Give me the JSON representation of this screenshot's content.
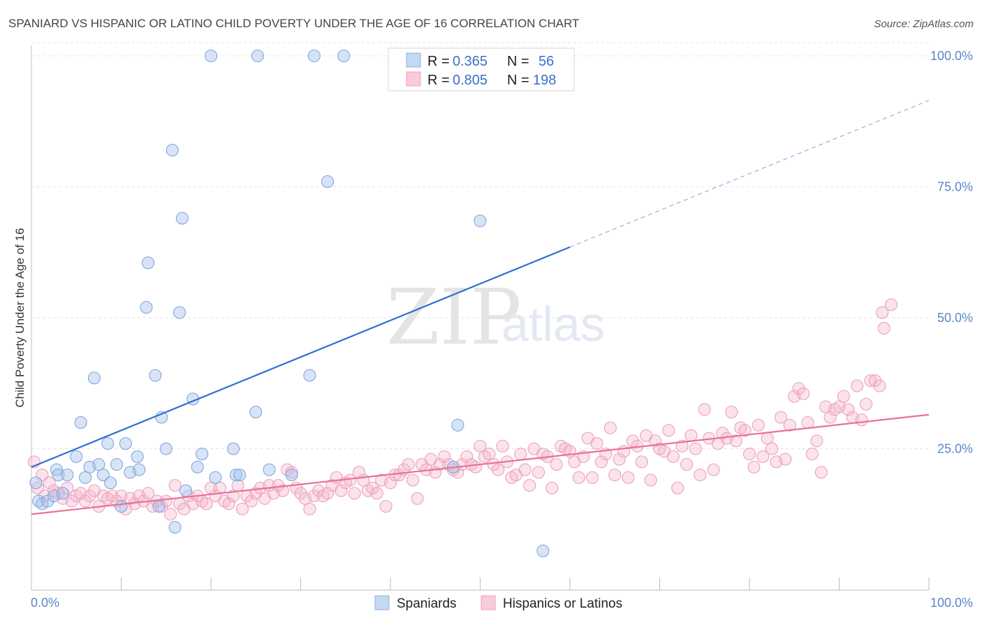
{
  "header": {
    "title": "SPANIARD VS HISPANIC OR LATINO CHILD POVERTY UNDER THE AGE OF 16 CORRELATION CHART",
    "source": "Source: ZipAtlas.com"
  },
  "watermark": {
    "zip": "ZIP",
    "atlas": "atlas"
  },
  "legend": {
    "rows": [
      {
        "r_label": "R =",
        "r_value": "0.365",
        "n_label": "N =",
        "n_value": "56",
        "color": "#a8c4ea"
      },
      {
        "r_label": "R =",
        "r_value": "0.805",
        "n_label": "N =",
        "n_value": "198",
        "color": "#f4b6cb"
      }
    ]
  },
  "bottom_legend": [
    {
      "label": "Spaniards",
      "color": "#a8c4ea"
    },
    {
      "label": "Hispanics or Latinos",
      "color": "#f4b6cb"
    }
  ],
  "chart_data": {
    "type": "scatter",
    "title": "SPANIARD VS HISPANIC OR LATINO CHILD POVERTY UNDER THE AGE OF 16 CORRELATION CHART",
    "xlabel": "",
    "ylabel": "Child Poverty Under the Age of 16",
    "xlim": [
      0,
      100
    ],
    "ylim": [
      0,
      102
    ],
    "x_tick_labels": [
      "0.0%",
      "100.0%"
    ],
    "y_tick_labels": [
      "25.0%",
      "50.0%",
      "75.0%",
      "100.0%"
    ],
    "y_ticks": [
      25,
      50,
      75,
      100
    ],
    "grid": true,
    "colors": {
      "spaniards": "#a8c4ea",
      "spaniards_line": "#2f6fd0",
      "hispanics": "#f4b6cb",
      "hispanics_line": "#e8709a"
    },
    "series": [
      {
        "name": "Spaniards",
        "trend": {
          "x0": 0,
          "y0": 21.5,
          "x1": 60,
          "y1": 63.5,
          "dashed_to_x": 100,
          "dashed_to_y": 91.5
        },
        "points": [
          [
            0.5,
            18.5
          ],
          [
            0.8,
            15
          ],
          [
            1.2,
            14.5
          ],
          [
            1.8,
            15
          ],
          [
            2.5,
            16
          ],
          [
            2.8,
            21
          ],
          [
            3,
            20
          ],
          [
            3.5,
            16.5
          ],
          [
            4,
            20
          ],
          [
            5,
            23.5
          ],
          [
            5.5,
            30
          ],
          [
            6,
            19.5
          ],
          [
            6.5,
            21.5
          ],
          [
            7,
            38.5
          ],
          [
            7.5,
            22
          ],
          [
            8,
            20
          ],
          [
            8.5,
            26
          ],
          [
            8.8,
            18.5
          ],
          [
            9.5,
            22
          ],
          [
            10,
            14
          ],
          [
            10.5,
            26
          ],
          [
            11,
            20.5
          ],
          [
            11.8,
            23.5
          ],
          [
            12,
            21
          ],
          [
            12.8,
            52
          ],
          [
            13,
            60.5
          ],
          [
            13.8,
            39
          ],
          [
            14.5,
            31
          ],
          [
            14.2,
            14
          ],
          [
            15,
            25
          ],
          [
            15.7,
            82
          ],
          [
            16,
            10
          ],
          [
            16.5,
            51
          ],
          [
            16.8,
            69
          ],
          [
            17.2,
            17
          ],
          [
            18,
            34.5
          ],
          [
            18.5,
            21.5
          ],
          [
            19,
            24
          ],
          [
            20,
            100
          ],
          [
            20.5,
            19.5
          ],
          [
            22.5,
            25
          ],
          [
            22.8,
            20
          ],
          [
            23.2,
            20
          ],
          [
            25,
            32
          ],
          [
            25.2,
            100
          ],
          [
            26.5,
            21
          ],
          [
            29,
            20
          ],
          [
            31,
            39
          ],
          [
            31.5,
            100
          ],
          [
            33,
            76
          ],
          [
            34.8,
            100
          ],
          [
            47,
            21.5
          ],
          [
            47.5,
            29.5
          ],
          [
            50,
            68.5
          ],
          [
            57,
            5.5
          ]
        ]
      },
      {
        "name": "Hispanics or Latinos",
        "trend": {
          "x0": 0,
          "y0": 12.5,
          "x1": 100,
          "y1": 31.5
        },
        "points": [
          [
            0.3,
            22.5
          ],
          [
            0.7,
            17.5
          ],
          [
            1.2,
            20
          ],
          [
            1.5,
            16
          ],
          [
            2,
            18.5
          ],
          [
            2.5,
            17
          ],
          [
            3,
            16.5
          ],
          [
            3.5,
            15.5
          ],
          [
            4,
            17.5
          ],
          [
            4.5,
            15
          ],
          [
            5,
            16
          ],
          [
            5.5,
            16.5
          ],
          [
            6,
            15
          ],
          [
            6.5,
            16
          ],
          [
            7,
            17
          ],
          [
            7.5,
            14
          ],
          [
            8,
            16
          ],
          [
            8.5,
            15.5
          ],
          [
            9,
            16
          ],
          [
            9.5,
            15
          ],
          [
            10,
            16
          ],
          [
            10.5,
            13.5
          ],
          [
            11,
            15.5
          ],
          [
            11.5,
            14.5
          ],
          [
            12,
            16
          ],
          [
            12.5,
            15
          ],
          [
            13,
            16.5
          ],
          [
            13.5,
            14
          ],
          [
            14,
            15
          ],
          [
            14.5,
            14
          ],
          [
            15,
            15
          ],
          [
            15.5,
            12.5
          ],
          [
            16,
            18
          ],
          [
            16.5,
            14.5
          ],
          [
            17,
            13.5
          ],
          [
            17.5,
            16
          ],
          [
            18,
            14.5
          ],
          [
            18.5,
            16
          ],
          [
            19,
            15
          ],
          [
            19.5,
            14.5
          ],
          [
            20,
            17.5
          ],
          [
            20.5,
            16
          ],
          [
            21,
            17.5
          ],
          [
            21.5,
            15
          ],
          [
            22,
            14.5
          ],
          [
            22.5,
            16
          ],
          [
            23,
            18
          ],
          [
            23.5,
            13.5
          ],
          [
            24,
            16
          ],
          [
            24.5,
            15
          ],
          [
            25,
            16.5
          ],
          [
            25.5,
            17.5
          ],
          [
            26,
            15.5
          ],
          [
            26.5,
            18
          ],
          [
            27,
            16.5
          ],
          [
            27.5,
            18
          ],
          [
            28,
            17
          ],
          [
            28.5,
            21
          ],
          [
            29,
            20.5
          ],
          [
            29.5,
            17.5
          ],
          [
            30,
            16.5
          ],
          [
            30.5,
            15.5
          ],
          [
            31,
            13.5
          ],
          [
            31.5,
            16
          ],
          [
            32,
            17
          ],
          [
            32.5,
            16
          ],
          [
            33,
            16.5
          ],
          [
            33.5,
            18
          ],
          [
            34,
            19.5
          ],
          [
            34.5,
            17
          ],
          [
            35,
            18.5
          ],
          [
            35.5,
            19
          ],
          [
            36,
            16.5
          ],
          [
            36.5,
            20.5
          ],
          [
            37,
            19
          ],
          [
            37.5,
            17
          ],
          [
            38,
            17.5
          ],
          [
            38.5,
            16.5
          ],
          [
            39,
            19
          ],
          [
            39.5,
            14
          ],
          [
            40,
            18.5
          ],
          [
            40.5,
            20
          ],
          [
            41,
            20
          ],
          [
            41.5,
            21
          ],
          [
            42,
            22
          ],
          [
            42.5,
            19
          ],
          [
            43,
            15.5
          ],
          [
            43.5,
            22
          ],
          [
            44,
            21
          ],
          [
            44.5,
            23
          ],
          [
            45,
            20.5
          ],
          [
            45.5,
            22
          ],
          [
            46,
            23.5
          ],
          [
            46.5,
            22
          ],
          [
            47,
            21
          ],
          [
            47.5,
            20.5
          ],
          [
            48,
            22
          ],
          [
            48.5,
            23.5
          ],
          [
            49,
            22
          ],
          [
            49.5,
            21.5
          ],
          [
            50,
            25.5
          ],
          [
            50.5,
            23.5
          ],
          [
            51,
            24
          ],
          [
            51.5,
            22
          ],
          [
            52,
            21
          ],
          [
            52.5,
            25.5
          ],
          [
            53,
            22.5
          ],
          [
            53.5,
            19.5
          ],
          [
            54,
            20
          ],
          [
            54.5,
            24
          ],
          [
            55,
            21
          ],
          [
            55.5,
            18
          ],
          [
            56,
            25
          ],
          [
            56.5,
            20.5
          ],
          [
            57,
            24
          ],
          [
            57.5,
            23.5
          ],
          [
            58,
            17.5
          ],
          [
            58.5,
            22
          ],
          [
            59,
            25.5
          ],
          [
            59.5,
            25
          ],
          [
            60,
            24.5
          ],
          [
            60.5,
            22.5
          ],
          [
            61,
            19.5
          ],
          [
            61.5,
            23.5
          ],
          [
            62,
            27
          ],
          [
            62.5,
            19.5
          ],
          [
            63,
            26
          ],
          [
            63.5,
            22.5
          ],
          [
            64,
            24
          ],
          [
            64.5,
            29
          ],
          [
            65,
            20
          ],
          [
            65.5,
            23
          ],
          [
            66,
            24.5
          ],
          [
            66.5,
            19.5
          ],
          [
            67,
            26.5
          ],
          [
            67.5,
            25.5
          ],
          [
            68,
            22.5
          ],
          [
            68.5,
            27.5
          ],
          [
            69,
            19
          ],
          [
            69.5,
            26.5
          ],
          [
            70,
            25
          ],
          [
            70.5,
            24.5
          ],
          [
            71,
            28.5
          ],
          [
            71.5,
            23.5
          ],
          [
            72,
            17.5
          ],
          [
            72.5,
            25.5
          ],
          [
            73,
            22
          ],
          [
            73.5,
            27.5
          ],
          [
            74,
            25
          ],
          [
            74.5,
            20
          ],
          [
            75,
            32.5
          ],
          [
            75.5,
            27
          ],
          [
            76,
            21
          ],
          [
            76.5,
            26
          ],
          [
            77,
            28
          ],
          [
            77.5,
            27
          ],
          [
            78,
            32
          ],
          [
            78.5,
            26.5
          ],
          [
            79,
            29
          ],
          [
            79.5,
            28.5
          ],
          [
            80,
            24
          ],
          [
            80.5,
            21.5
          ],
          [
            81,
            29.5
          ],
          [
            81.5,
            23.5
          ],
          [
            82,
            27
          ],
          [
            82.5,
            25
          ],
          [
            83,
            22.5
          ],
          [
            83.5,
            31
          ],
          [
            84,
            23
          ],
          [
            84.5,
            29.5
          ],
          [
            85,
            35
          ],
          [
            85.5,
            36.5
          ],
          [
            86,
            35.5
          ],
          [
            86.5,
            30
          ],
          [
            87,
            24
          ],
          [
            87.5,
            26.5
          ],
          [
            88,
            20.5
          ],
          [
            88.5,
            33
          ],
          [
            89,
            31
          ],
          [
            89.5,
            32.5
          ],
          [
            90,
            33
          ],
          [
            90.5,
            35
          ],
          [
            91,
            32.5
          ],
          [
            91.5,
            31
          ],
          [
            92,
            37
          ],
          [
            92.5,
            30.5
          ],
          [
            93,
            33.5
          ],
          [
            93.5,
            38
          ],
          [
            94,
            38
          ],
          [
            94.5,
            37
          ],
          [
            94.8,
            51
          ],
          [
            95,
            48
          ],
          [
            95.8,
            52.5
          ]
        ]
      }
    ]
  }
}
